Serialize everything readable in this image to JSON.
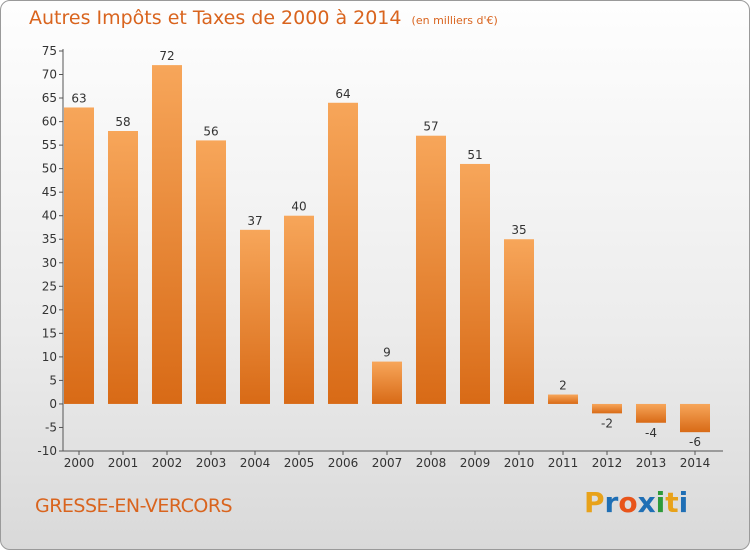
{
  "chart_data": {
    "type": "bar",
    "title": "Autres Impôts et Taxes de 2000 à 2014",
    "unit": "(en milliers d'€)",
    "categories": [
      "2000",
      "2001",
      "2002",
      "2003",
      "2004",
      "2005",
      "2006",
      "2007",
      "2008",
      "2009",
      "2010",
      "2011",
      "2012",
      "2013",
      "2014"
    ],
    "values": [
      63,
      58,
      72,
      56,
      37,
      40,
      64,
      9,
      57,
      51,
      35,
      2,
      -2,
      -4,
      -6
    ],
    "ylim": [
      -10,
      75
    ],
    "yticks": [
      -10,
      -5,
      0,
      5,
      10,
      15,
      20,
      25,
      30,
      35,
      40,
      45,
      50,
      55,
      60,
      65,
      70,
      75
    ],
    "grid": false,
    "bar_color": "#e87f2a"
  },
  "footer": {
    "commune": "GRESSE-EN-VERCORS",
    "brand": [
      "P",
      "r",
      "o",
      "x",
      "i",
      "t",
      "i"
    ],
    "brand_colors": [
      "#e8a21a",
      "#1f6fb5",
      "#e8541a",
      "#1f6fb5",
      "#2e9a3a",
      "#e8a21a",
      "#1f6fb5"
    ]
  }
}
